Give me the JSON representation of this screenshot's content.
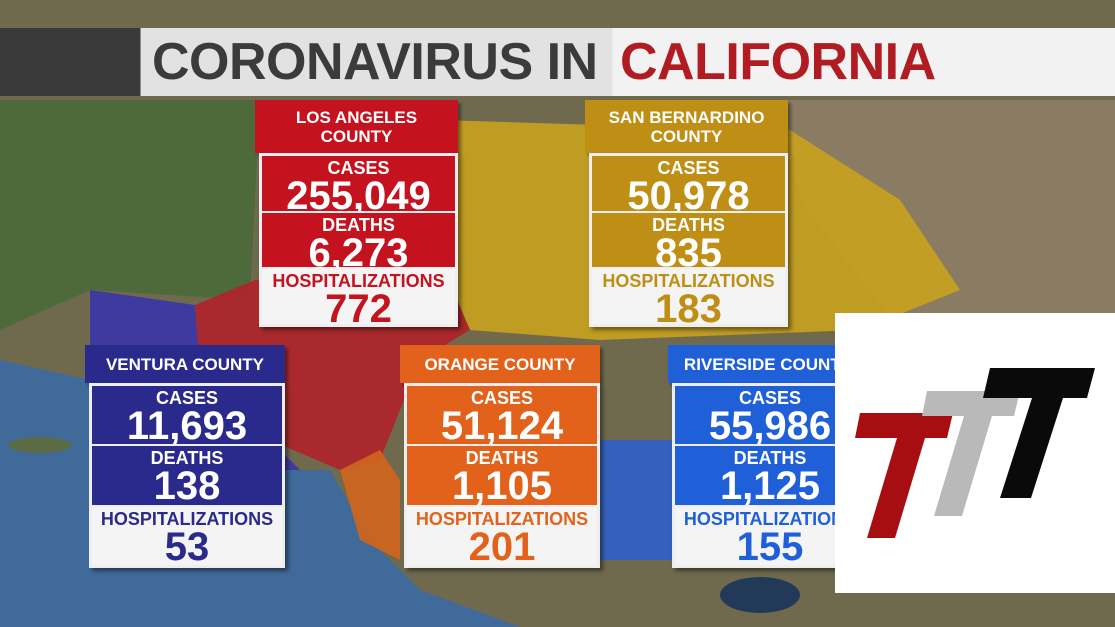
{
  "title": {
    "prefix": "CORONAVIRUS IN",
    "highlight": "CALIFORNIA"
  },
  "counties": [
    {
      "name": "LOS ANGELES COUNTY",
      "cases_label": "CASES",
      "cases": "255,049",
      "deaths_label": "DEATHS",
      "deaths": "6,273",
      "hospitalizations_label": "HOSPITALIZATIONS",
      "hospitalizations": "772"
    },
    {
      "name": "SAN BERNARDINO COUNTY",
      "cases_label": "CASES",
      "cases": "50,978",
      "deaths_label": "DEATHS",
      "deaths": "835",
      "hospitalizations_label": "HOSPITALIZATIONS",
      "hospitalizations": "183"
    },
    {
      "name": "VENTURA COUNTY",
      "cases_label": "CASES",
      "cases": "11,693",
      "deaths_label": "DEATHS",
      "deaths": "138",
      "hospitalizations_label": "HOSPITALIZATIONS",
      "hospitalizations": "53"
    },
    {
      "name": "ORANGE COUNTY",
      "cases_label": "CASES",
      "cases": "51,124",
      "deaths_label": "DEATHS",
      "deaths": "1,105",
      "hospitalizations_label": "HOSPITALIZATIONS",
      "hospitalizations": "201"
    },
    {
      "name": "RIVERSIDE COUNTY",
      "cases_label": "CASES",
      "cases": "55,986",
      "deaths_label": "DEATHS",
      "deaths": "1,125",
      "hospitalizations_label": "HOSPITALIZATIONS",
      "hospitalizations": "155"
    }
  ]
}
